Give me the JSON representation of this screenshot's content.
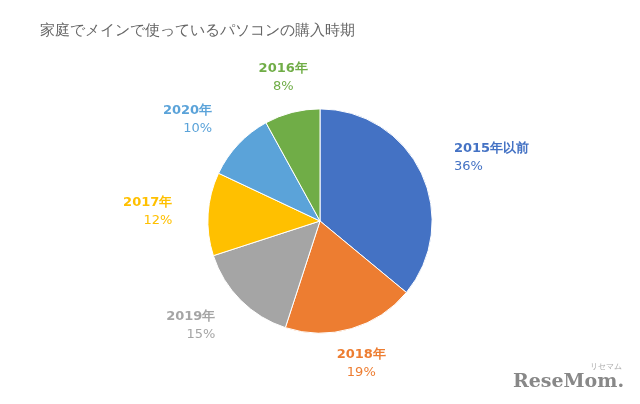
{
  "chart_data": {
    "type": "pie",
    "title": "家庭でメインで使っているパソコンの購入時期",
    "categories": [
      "2015年以前",
      "2018年",
      "2019年",
      "2017年",
      "2020年",
      "2016年"
    ],
    "values": [
      36,
      19,
      15,
      12,
      10,
      8
    ],
    "value_labels": [
      "36%",
      "19%",
      "15%",
      "12%",
      "10%",
      "8%"
    ],
    "colors": [
      "#4472C4",
      "#ED7D31",
      "#A5A5A5",
      "#FFC000",
      "#5BA3D9",
      "#70AD47"
    ],
    "data_labels": true,
    "annotations": [
      "ReseMom.",
      "リセマム"
    ]
  }
}
